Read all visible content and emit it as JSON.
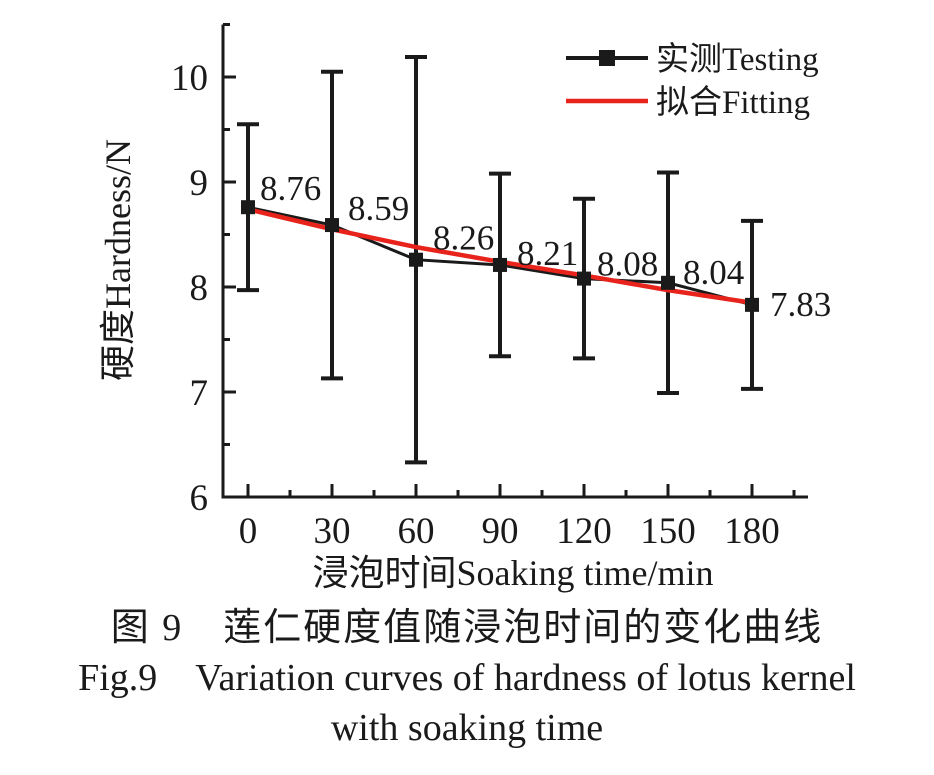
{
  "figure": {
    "caption_zh": "图 9 莲仁硬度值随浸泡时间的变化曲线",
    "caption_en_line1": "Fig.9 Variation curves of hardness of lotus kernel",
    "caption_en_line2": "with soaking time"
  },
  "colors": {
    "testing": "#1a1a1a",
    "fitting": "#e8231c",
    "text": "#1a1a1a",
    "background": "#ffffff"
  },
  "chart_data": {
    "type": "line",
    "title": "",
    "xlabel": "浸泡时间Soaking time/min",
    "ylabel": "硬度Hardness/N",
    "x": [
      0,
      30,
      60,
      90,
      120,
      150,
      180
    ],
    "xlim": [
      -11,
      200
    ],
    "ylim": [
      6,
      10.5
    ],
    "x_major_ticks": [
      0,
      30,
      60,
      90,
      120,
      150,
      180
    ],
    "x_major_tick_labels": [
      "0",
      "30",
      "60",
      "90",
      "120",
      "150",
      "180"
    ],
    "x_minor_ticks": [
      15,
      45,
      75,
      105,
      135,
      165,
      195
    ],
    "y_major_ticks": [
      6,
      7,
      8,
      9,
      10
    ],
    "y_major_tick_labels": [
      "6",
      "7",
      "8",
      "9",
      "10"
    ],
    "y_minor_ticks": [
      6.5,
      7.5,
      8.5,
      9.5,
      10.5
    ],
    "grid": false,
    "legend_position": "top-right",
    "series": [
      {
        "name": "实测Testing",
        "style": "line+marker+errorbar",
        "marker": "square",
        "color": "#1a1a1a",
        "values": [
          8.76,
          8.59,
          8.26,
          8.21,
          8.08,
          8.04,
          7.83
        ],
        "errors": [
          0.79,
          1.46,
          1.93,
          0.87,
          0.76,
          1.05,
          0.8
        ],
        "point_labels": [
          "8.76",
          "8.59",
          "8.26",
          "8.21",
          "8.08",
          "8.04",
          "7.83"
        ]
      },
      {
        "name": "拟合Fitting",
        "style": "line",
        "marker": "none",
        "color": "#e8231c",
        "values": [
          8.74,
          8.55,
          8.38,
          8.24,
          8.11,
          7.97,
          7.85
        ]
      }
    ]
  }
}
